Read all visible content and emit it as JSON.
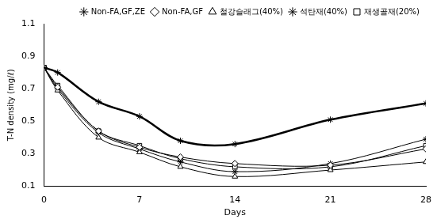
{
  "chart_data": {
    "type": "line",
    "x_label": "Days",
    "y_label": "T-N density (mg/ℓ)",
    "x": [
      0,
      1,
      4,
      7,
      10,
      14,
      21,
      28
    ],
    "xlim": [
      0,
      28
    ],
    "xticks": [
      0,
      7,
      14,
      21,
      28
    ],
    "ylim": [
      0.1,
      1.1
    ],
    "yticks": [
      0.1,
      0.3,
      0.5,
      0.7,
      0.9,
      1.1
    ],
    "grid": false,
    "legend": "top",
    "series": [
      {
        "name": "Non-FA,GF,ZE",
        "color": "#000000",
        "marker": "star",
        "line_style": "bold",
        "values": [
          0.83,
          0.8,
          0.62,
          0.53,
          0.38,
          0.36,
          0.51,
          0.61
        ]
      },
      {
        "name": "Non-FA,GF",
        "color": "#000000",
        "marker": "diamond",
        "line_style": "solid",
        "values": [
          0.83,
          0.71,
          0.44,
          0.34,
          0.28,
          0.24,
          0.23,
          0.33
        ]
      },
      {
        "name": "철강슬래그(40%)",
        "color": "#000000",
        "marker": "triangle",
        "line_style": "solid",
        "values": [
          0.83,
          0.69,
          0.4,
          0.31,
          0.22,
          0.16,
          0.2,
          0.25
        ]
      },
      {
        "name": "석탄재(40%)",
        "color": "#000000",
        "marker": "star",
        "line_style": "solid",
        "values": [
          0.83,
          0.7,
          0.43,
          0.33,
          0.25,
          0.19,
          0.24,
          0.39
        ]
      },
      {
        "name": "재생골재(20%)",
        "color": "#000000",
        "marker": "square",
        "line_style": "solid",
        "values": [
          0.83,
          0.72,
          0.44,
          0.35,
          0.27,
          0.22,
          0.22,
          0.35
        ]
      }
    ]
  }
}
